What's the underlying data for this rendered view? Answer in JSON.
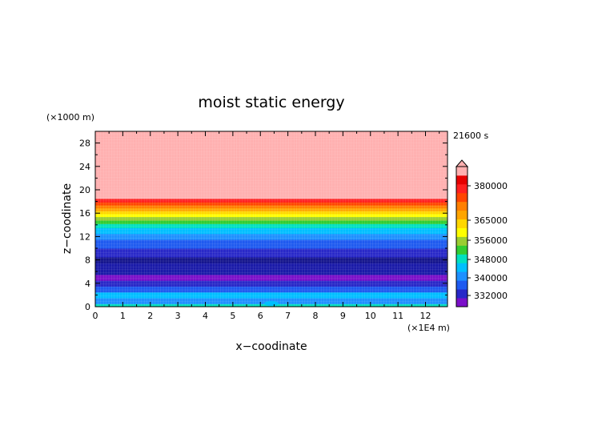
{
  "chart_data": {
    "type": "heatmap",
    "title": "moist static energy",
    "xlabel": "x−coodinate",
    "ylabel": "z−coodinate",
    "x_unit": "(×1E4 m)",
    "y_unit": "(×1000 m)",
    "time_label": "21600 s",
    "xlim": [
      0,
      12.8
    ],
    "ylim": [
      0,
      30
    ],
    "x_ticks": [
      0,
      1,
      2,
      3,
      4,
      5,
      6,
      7,
      8,
      9,
      10,
      11,
      12
    ],
    "y_ticks": [
      0,
      4,
      8,
      12,
      16,
      20,
      24,
      28
    ],
    "colorbar": {
      "labels": [
        "380000",
        "365000",
        "356000",
        "348000",
        "340000",
        "332000"
      ],
      "colors": [
        "#7b0fc9",
        "#2828c8",
        "#1e5af0",
        "#1e90ff",
        "#00bfff",
        "#00e0c0",
        "#32cd32",
        "#9acd32",
        "#ffff00",
        "#ffd700",
        "#ffa500",
        "#ff7f00",
        "#ff4500",
        "#ff2020",
        "#e60000",
        "#ffb0b0"
      ]
    },
    "layers": [
      {
        "z0": 0,
        "z1": 0.5,
        "color": "#00e0c0"
      },
      {
        "z0": 0.5,
        "z1": 1.5,
        "color": "#1e90ff"
      },
      {
        "z0": 1.5,
        "z1": 2.5,
        "color": "#00bfff"
      },
      {
        "z0": 2.5,
        "z1": 3.5,
        "color": "#1e5af0"
      },
      {
        "z0": 3.5,
        "z1": 4.5,
        "color": "#2828c8"
      },
      {
        "z0": 4.5,
        "z1": 5.5,
        "color": "#7b0fc9"
      },
      {
        "z0": 5.5,
        "z1": 7.5,
        "color": "#1a1aa8"
      },
      {
        "z0": 7.5,
        "z1": 8.5,
        "color": "#14148c"
      },
      {
        "z0": 8.5,
        "z1": 10,
        "color": "#2828c8"
      },
      {
        "z0": 10,
        "z1": 11.5,
        "color": "#1e5af0"
      },
      {
        "z0": 11.5,
        "z1": 12.5,
        "color": "#1e90ff"
      },
      {
        "z0": 12.5,
        "z1": 13.5,
        "color": "#00bfff"
      },
      {
        "z0": 13.5,
        "z1": 14.2,
        "color": "#00e0c0"
      },
      {
        "z0": 14.2,
        "z1": 14.8,
        "color": "#32cd32"
      },
      {
        "z0": 14.8,
        "z1": 15.4,
        "color": "#9acd32"
      },
      {
        "z0": 15.4,
        "z1": 15.9,
        "color": "#ffff00"
      },
      {
        "z0": 15.9,
        "z1": 16.4,
        "color": "#ffd700"
      },
      {
        "z0": 16.4,
        "z1": 16.9,
        "color": "#ffa500"
      },
      {
        "z0": 16.9,
        "z1": 17.4,
        "color": "#ff7f00"
      },
      {
        "z0": 17.4,
        "z1": 17.9,
        "color": "#ff4500"
      },
      {
        "z0": 17.9,
        "z1": 18.5,
        "color": "#ff2020"
      },
      {
        "z0": 18.5,
        "z1": 30,
        "color": "#ffb0b0"
      }
    ]
  }
}
